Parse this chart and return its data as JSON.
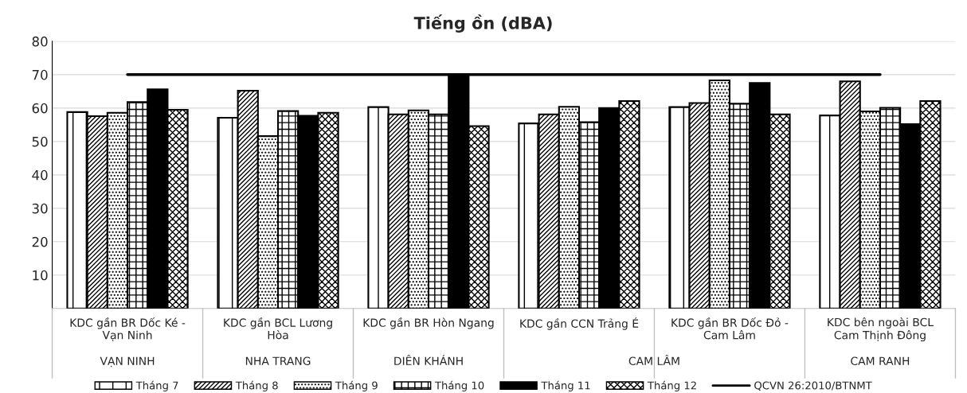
{
  "chart_data": {
    "type": "bar",
    "title": "Tiếng ồn (dBA)",
    "categories": [
      "KDC gần BR Dốc Ké -\nVạn Ninh",
      "KDC gần BCL Lương\nHòa",
      "KDC gần BR Hòn Ngang",
      "KDC gần CCN Trảng É",
      "KDC gần BR Dốc Đỏ -\nCam Lâm",
      "KDC bên ngoài BCL\nCam Thịnh Đông"
    ],
    "series": [
      {
        "name": "Tháng 7",
        "color": "#000000",
        "values": [
          58.8,
          57.1,
          60.3,
          55.4,
          60.3,
          57.8
        ]
      },
      {
        "name": "Tháng 8",
        "color": "#000000",
        "values": [
          57.6,
          65.2,
          58.1,
          58.1,
          61.5,
          68.0
        ]
      },
      {
        "name": "Tháng 9",
        "color": "#000000",
        "values": [
          58.6,
          51.6,
          59.3,
          60.4,
          68.3,
          59.0
        ]
      },
      {
        "name": "Tháng 10",
        "color": "#000000",
        "values": [
          61.8,
          59.1,
          58.1,
          55.8,
          61.3,
          60.1
        ]
      },
      {
        "name": "Tháng 11",
        "color": "#000000",
        "values": [
          65.6,
          57.7,
          70.0,
          60.0,
          67.5,
          55.2
        ]
      },
      {
        "name": "Tháng 12",
        "color": "#000000",
        "values": [
          59.5,
          58.6,
          54.6,
          62.1,
          58.1,
          62.1
        ]
      },
      {
        "name": "QCVN 26:2010/BTNMT",
        "type": "line",
        "color": "#000000",
        "values": [
          70,
          70,
          70,
          70,
          70,
          70
        ]
      }
    ],
    "line_style": "solid",
    "annotations": [
      "VẠN NINH",
      "NHA TRANG",
      "DIÊN KHÁNH",
      "CAM LÂM",
      "CAM RANH"
    ],
    "ylim": [
      0,
      80
    ],
    "yticks": [
      10,
      20,
      30,
      40,
      50,
      60,
      70,
      80
    ],
    "grid": "y",
    "legend": "bottom"
  }
}
